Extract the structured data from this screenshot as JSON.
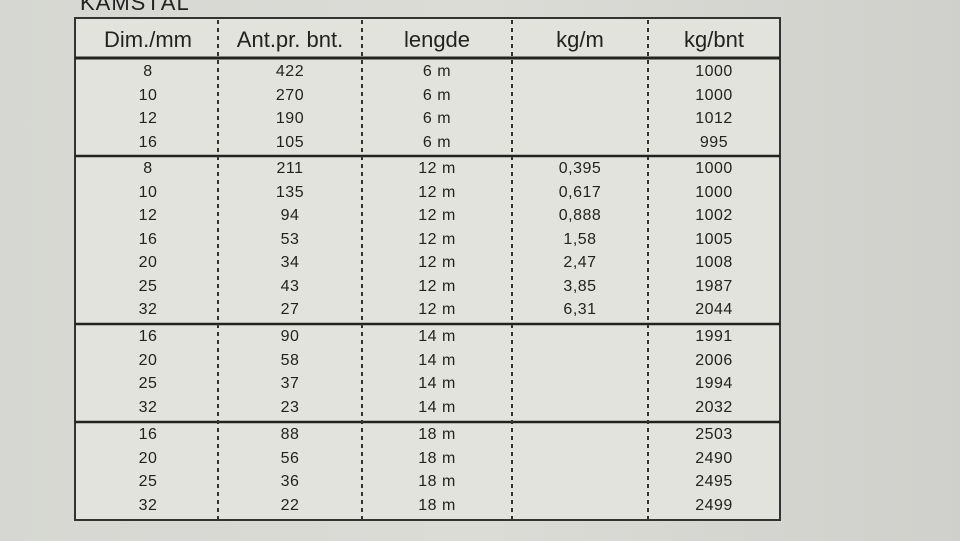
{
  "title": "KAMSTÅL",
  "table": {
    "headers": [
      "Dim./mm",
      "Ant.pr. bnt.",
      "lengde",
      "kg/m",
      "kg/bnt"
    ],
    "groups": [
      [
        {
          "dim": "8",
          "ant": "422",
          "lengde": "6 m",
          "kg_bnt": "1000"
        },
        {
          "dim": "10",
          "ant": "270",
          "lengde": "6 m",
          "kg_bnt": "1000"
        },
        {
          "dim": "12",
          "ant": "190",
          "lengde": "6 m",
          "kg_bnt": "1012"
        },
        {
          "dim": "16",
          "ant": "105",
          "lengde": "6 m",
          "kg_bnt": "995"
        }
      ],
      [
        {
          "dim": "8",
          "ant": "211",
          "lengde": "12 m",
          "kg_m": "0,395",
          "kg_bnt": "1000"
        },
        {
          "dim": "10",
          "ant": "135",
          "lengde": "12 m",
          "kg_m": "0,617",
          "kg_bnt": "1000"
        },
        {
          "dim": "12",
          "ant": "94",
          "lengde": "12 m",
          "kg_m": "0,888",
          "kg_bnt": "1002"
        },
        {
          "dim": "16",
          "ant": "53",
          "lengde": "12 m",
          "kg_m": "1,58",
          "kg_bnt": "1005"
        },
        {
          "dim": "20",
          "ant": "34",
          "lengde": "12 m",
          "kg_m": "2,47",
          "kg_bnt": "1008"
        },
        {
          "dim": "25",
          "ant": "43",
          "lengde": "12 m",
          "kg_m": "3,85",
          "kg_bnt": "1987"
        },
        {
          "dim": "32",
          "ant": "27",
          "lengde": "12 m",
          "kg_m": "6,31",
          "kg_bnt": "2044"
        }
      ],
      [
        {
          "dim": "16",
          "ant": "90",
          "lengde": "14 m",
          "kg_bnt": "1991"
        },
        {
          "dim": "20",
          "ant": "58",
          "lengde": "14 m",
          "kg_bnt": "2006"
        },
        {
          "dim": "25",
          "ant": "37",
          "lengde": "14 m",
          "kg_bnt": "1994"
        },
        {
          "dim": "32",
          "ant": "23",
          "lengde": "14 m",
          "kg_bnt": "2032"
        }
      ],
      [
        {
          "dim": "16",
          "ant": "88",
          "lengde": "18 m",
          "kg_bnt": "2503"
        },
        {
          "dim": "20",
          "ant": "56",
          "lengde": "18 m",
          "kg_bnt": "2490"
        },
        {
          "dim": "25",
          "ant": "36",
          "lengde": "18 m",
          "kg_bnt": "2495"
        },
        {
          "dim": "32",
          "ant": "22",
          "lengde": "18 m",
          "kg_bnt": "2499"
        }
      ]
    ]
  }
}
